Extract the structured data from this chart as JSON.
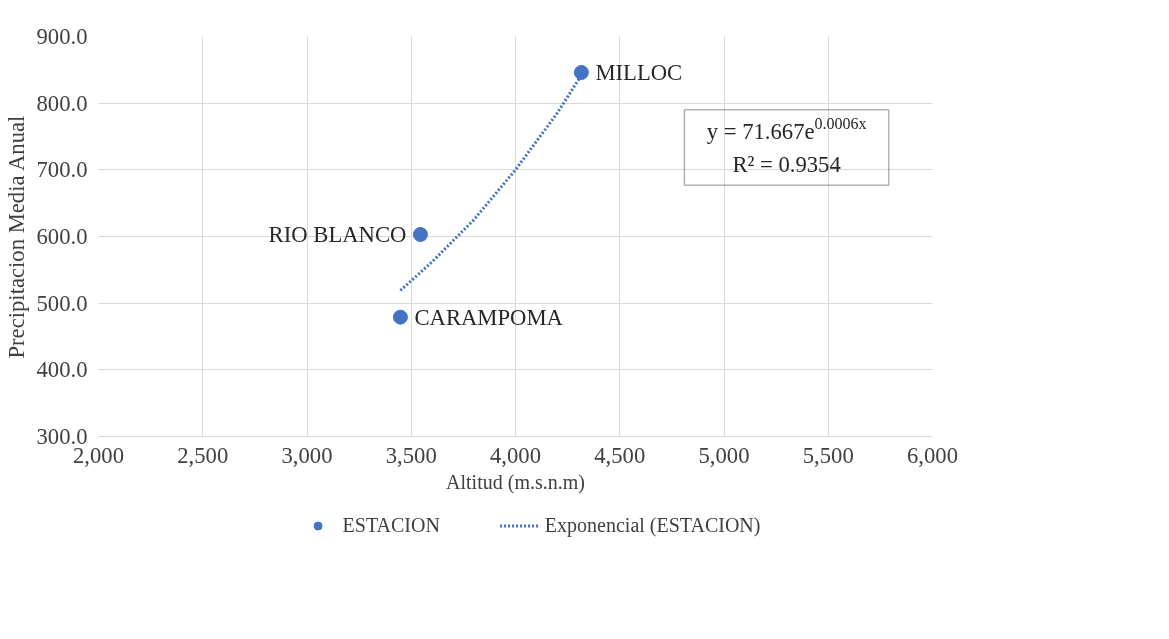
{
  "chart_data": {
    "type": "scatter",
    "xlabel": "Altitud (m.s.n.m)",
    "ylabel": "Precipitacion Media Anual",
    "xlim": [
      2000,
      6000
    ],
    "xticks": [
      {
        "value": 2000,
        "label": "2,000"
      },
      {
        "value": 2500,
        "label": "2,500"
      },
      {
        "value": 3000,
        "label": "3,000"
      },
      {
        "value": 3500,
        "label": "3,500"
      },
      {
        "value": 4000,
        "label": "4,000"
      },
      {
        "value": 4500,
        "label": "4,500"
      },
      {
        "value": 5000,
        "label": "5,000"
      },
      {
        "value": 5500,
        "label": "5,500"
      },
      {
        "value": 6000,
        "label": "6,000"
      }
    ],
    "ylim": [
      300,
      900
    ],
    "yticks": [
      {
        "value": 300,
        "label": "300.0"
      },
      {
        "value": 400,
        "label": "400.0"
      },
      {
        "value": 500,
        "label": "500.0"
      },
      {
        "value": 600,
        "label": "600.0"
      },
      {
        "value": 700,
        "label": "700.0"
      },
      {
        "value": 800,
        "label": "800.0"
      },
      {
        "value": 900,
        "label": "900.0"
      }
    ],
    "grid": true,
    "legend": "bottom",
    "marker": "circle",
    "series": [
      {
        "name": "ESTACION",
        "color": "#4472c4",
        "x": [
          4316,
          3544,
          3448
        ],
        "values": [
          846,
          603,
          479
        ]
      },
      {
        "name": "Exponencial (ESTACION)",
        "type": "line",
        "line_style": "dotted",
        "marker": "none",
        "color": "#4472c4",
        "x": [
          3448,
          3600,
          3800,
          4000,
          4200,
          4316
        ],
        "values": [
          519,
          562,
          625,
          700,
          785,
          842
        ]
      }
    ],
    "annotations": [
      {
        "text": "MILLOC",
        "x": 4316,
        "y": 846
      },
      {
        "text": "RIO BLANCO",
        "x": 3544,
        "y": 603
      },
      {
        "text": "CARAMPOMA",
        "x": 3448,
        "y": 479
      },
      "y = 71.667e$^{0.0006x}$",
      "R² = 0.9354"
    ]
  }
}
